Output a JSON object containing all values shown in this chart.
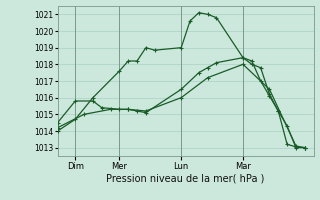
{
  "background_color": "#cce8dc",
  "grid_color": "#aad0c4",
  "line_color": "#1a5c28",
  "title": "Pression niveau de la mer( hPa )",
  "xlim": [
    0,
    29
  ],
  "ylim": [
    1012.5,
    1021.5
  ],
  "yticks": [
    1013,
    1014,
    1015,
    1016,
    1017,
    1018,
    1019,
    1020,
    1021
  ],
  "xtick_positions": [
    2,
    7,
    14,
    21
  ],
  "xtick_labels": [
    "Dim",
    "Mer",
    "Lun",
    "Mar"
  ],
  "series1_x": [
    0,
    2,
    4,
    7,
    8,
    9,
    10,
    11,
    14,
    15,
    16,
    17,
    18,
    21,
    22,
    23,
    24,
    25,
    26,
    27,
    28
  ],
  "series1_y": [
    1014.0,
    1014.7,
    1016.0,
    1017.6,
    1018.2,
    1018.2,
    1019.0,
    1018.85,
    1019.0,
    1020.6,
    1021.1,
    1021.0,
    1020.8,
    1018.4,
    1018.0,
    1017.8,
    1016.2,
    1015.2,
    1014.3,
    1013.0,
    1013.0
  ],
  "series2_x": [
    0,
    2,
    4,
    5,
    7,
    8,
    9,
    10,
    14,
    16,
    17,
    18,
    21,
    22,
    23,
    24,
    25,
    26,
    27,
    28
  ],
  "series2_y": [
    1014.5,
    1015.8,
    1015.8,
    1015.4,
    1015.3,
    1015.3,
    1015.2,
    1015.1,
    1016.5,
    1017.5,
    1017.8,
    1018.1,
    1018.4,
    1018.2,
    1017.0,
    1016.1,
    1015.2,
    1013.2,
    1013.05,
    1013.0
  ],
  "series3_x": [
    0,
    3,
    6,
    8,
    10,
    14,
    17,
    21,
    24,
    27,
    28
  ],
  "series3_y": [
    1014.2,
    1015.0,
    1015.3,
    1015.3,
    1015.2,
    1016.0,
    1017.2,
    1018.0,
    1016.5,
    1013.1,
    1013.0
  ]
}
